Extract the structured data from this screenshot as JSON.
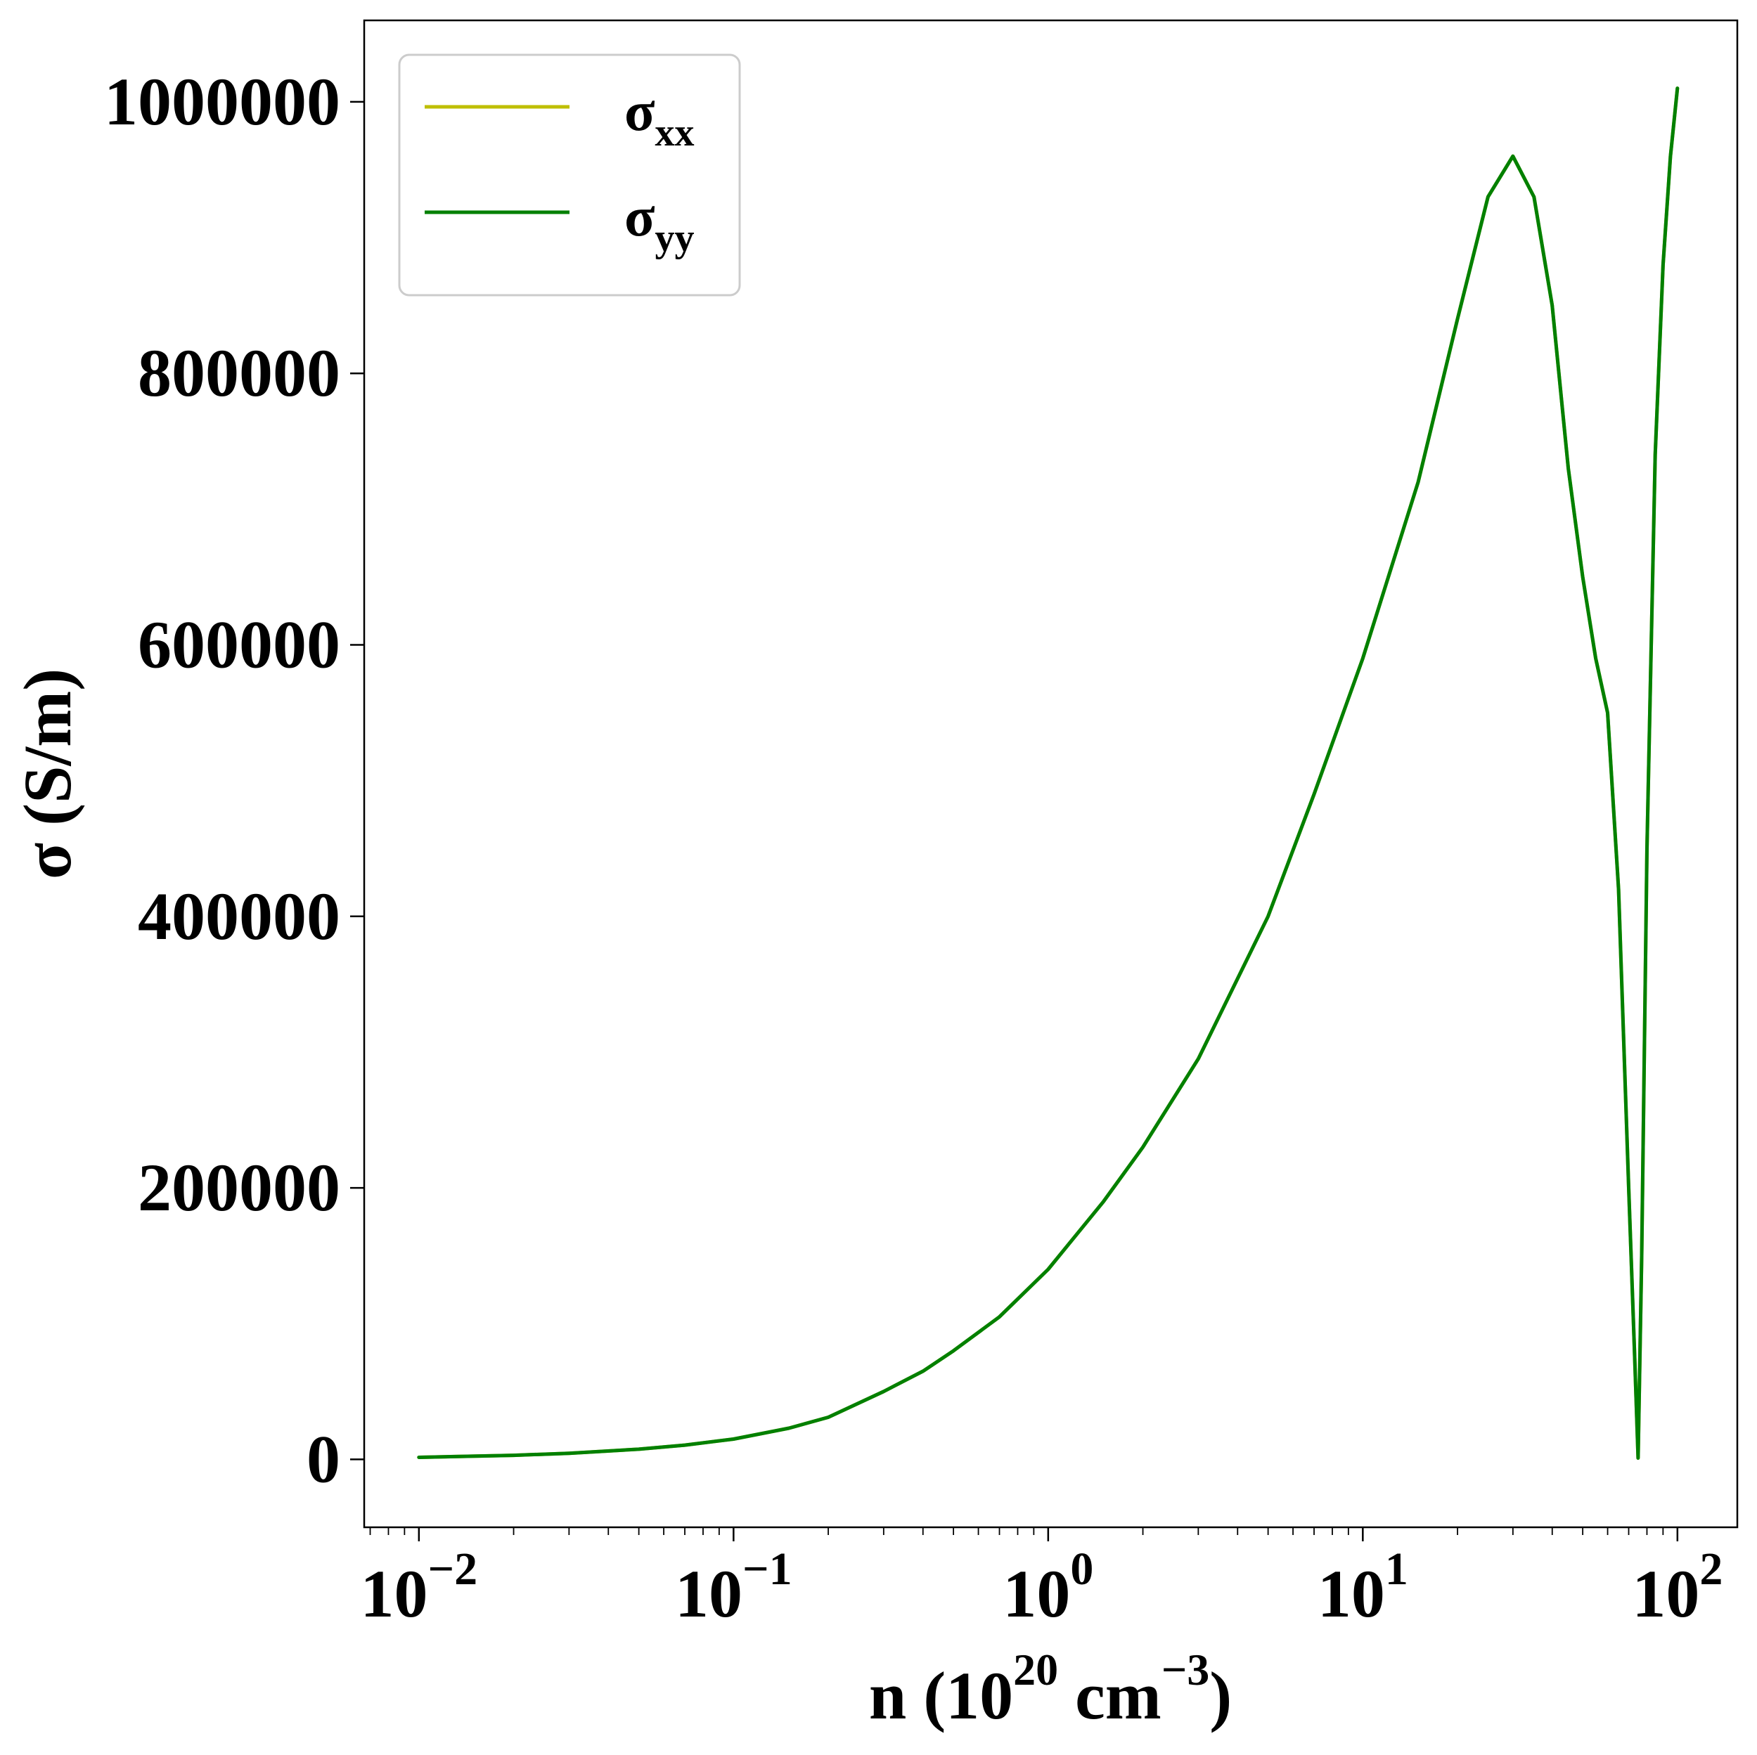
{
  "chart_data": {
    "type": "line",
    "title": "",
    "xlabel": {
      "base": "n (10",
      "sup1": "20",
      "mid": " cm",
      "sup2": "−3",
      "end": ")"
    },
    "ylabel": "σ (S/m)",
    "x_scale": "log",
    "xlim": [
      0.0067,
      155
    ],
    "ylim": [
      -50000,
      1060000
    ],
    "grid": false,
    "legend_position": "top-left",
    "x_ticks": [
      {
        "value": 0.01,
        "base": "10",
        "exp": "−2"
      },
      {
        "value": 0.1,
        "base": "10",
        "exp": "−1"
      },
      {
        "value": 1,
        "base": "10",
        "exp": "0"
      },
      {
        "value": 10,
        "base": "10",
        "exp": "1"
      },
      {
        "value": 100,
        "base": "10",
        "exp": "2"
      }
    ],
    "y_ticks": [
      {
        "value": 0,
        "label": "0"
      },
      {
        "value": 200000,
        "label": "200000"
      },
      {
        "value": 400000,
        "label": "400000"
      },
      {
        "value": 600000,
        "label": "600000"
      },
      {
        "value": 800000,
        "label": "800000"
      },
      {
        "value": 1000000,
        "label": "1000000"
      }
    ],
    "series": [
      {
        "name": "σ",
        "subscript": "xx",
        "color": "#bfbf00",
        "points": [
          [
            0.01,
            1500
          ],
          [
            0.02,
            3000
          ],
          [
            0.03,
            4500
          ],
          [
            0.05,
            7500
          ],
          [
            0.07,
            10500
          ],
          [
            0.1,
            15000
          ],
          [
            0.15,
            23000
          ],
          [
            0.2,
            31000
          ],
          [
            0.3,
            50000
          ],
          [
            0.4,
            65000
          ],
          [
            0.5,
            80000
          ],
          [
            0.7,
            105000
          ],
          [
            1,
            140000
          ],
          [
            1.5,
            190000
          ],
          [
            2,
            230000
          ],
          [
            3,
            295000
          ],
          [
            5,
            400000
          ],
          [
            7,
            490000
          ],
          [
            10,
            590000
          ],
          [
            15,
            720000
          ],
          [
            20,
            840000
          ],
          [
            25,
            930000
          ],
          [
            30,
            960000
          ],
          [
            35,
            930000
          ],
          [
            40,
            850000
          ],
          [
            45,
            730000
          ],
          [
            50,
            650000
          ],
          [
            55,
            590000
          ],
          [
            60,
            550000
          ],
          [
            65,
            420000
          ],
          [
            70,
            200000
          ],
          [
            73,
            80000
          ],
          [
            75,
            1000
          ],
          [
            77,
            150000
          ],
          [
            80,
            450000
          ],
          [
            85,
            740000
          ],
          [
            90,
            880000
          ],
          [
            95,
            960000
          ],
          [
            100,
            1010000
          ]
        ]
      },
      {
        "name": "σ",
        "subscript": "yy",
        "color": "#008000",
        "points": [
          [
            0.01,
            1500
          ],
          [
            0.02,
            3000
          ],
          [
            0.03,
            4500
          ],
          [
            0.05,
            7500
          ],
          [
            0.07,
            10500
          ],
          [
            0.1,
            15000
          ],
          [
            0.15,
            23000
          ],
          [
            0.2,
            31000
          ],
          [
            0.3,
            50000
          ],
          [
            0.4,
            65000
          ],
          [
            0.5,
            80000
          ],
          [
            0.7,
            105000
          ],
          [
            1,
            140000
          ],
          [
            1.5,
            190000
          ],
          [
            2,
            230000
          ],
          [
            3,
            295000
          ],
          [
            5,
            400000
          ],
          [
            7,
            490000
          ],
          [
            10,
            590000
          ],
          [
            15,
            720000
          ],
          [
            20,
            840000
          ],
          [
            25,
            930000
          ],
          [
            30,
            960000
          ],
          [
            35,
            930000
          ],
          [
            40,
            850000
          ],
          [
            45,
            730000
          ],
          [
            50,
            650000
          ],
          [
            55,
            590000
          ],
          [
            60,
            550000
          ],
          [
            65,
            420000
          ],
          [
            70,
            200000
          ],
          [
            73,
            80000
          ],
          [
            75,
            1000
          ],
          [
            77,
            150000
          ],
          [
            80,
            450000
          ],
          [
            85,
            740000
          ],
          [
            90,
            880000
          ],
          [
            95,
            960000
          ],
          [
            100,
            1010000
          ]
        ]
      }
    ]
  }
}
